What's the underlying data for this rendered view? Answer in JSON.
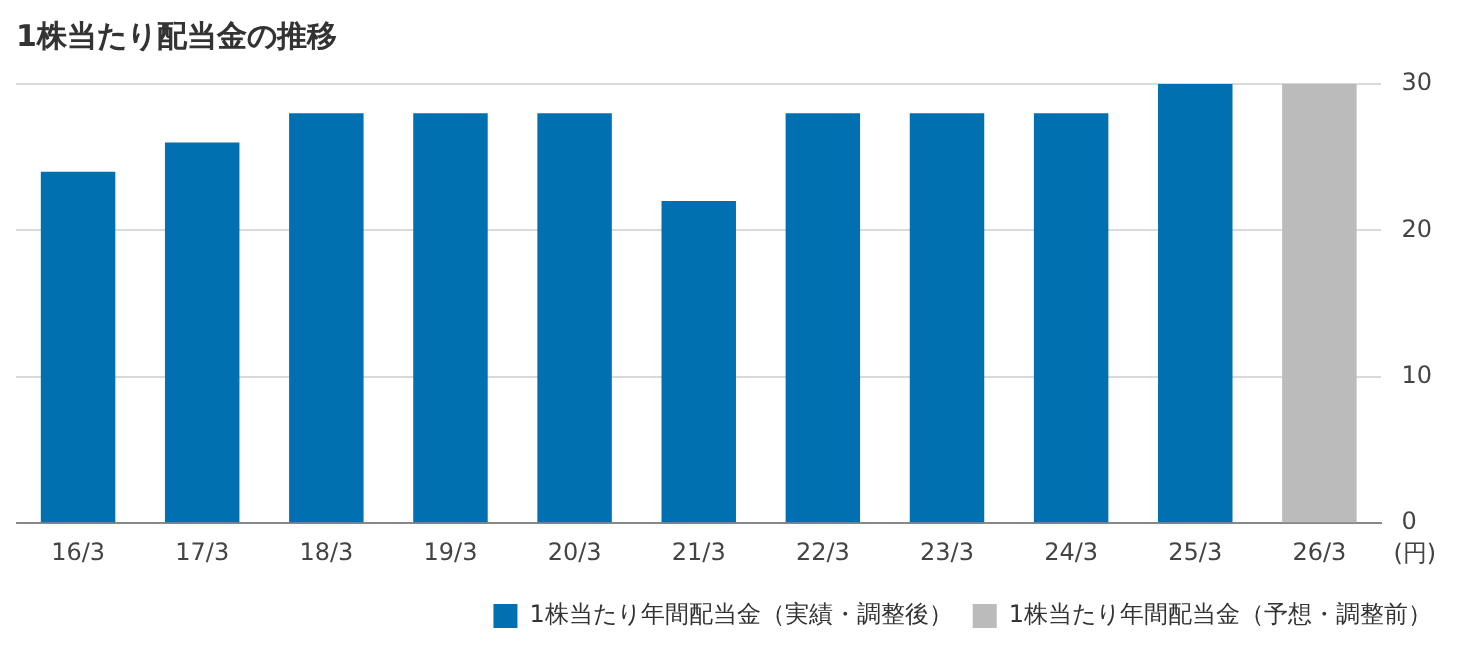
{
  "chart_data": {
    "type": "bar",
    "title": "1株当たり配当金の推移",
    "ylabel": "(円)",
    "categories": [
      "16/3",
      "17/3",
      "18/3",
      "19/3",
      "20/3",
      "21/3",
      "22/3",
      "23/3",
      "24/3",
      "25/3",
      "26/3"
    ],
    "series": [
      {
        "name": "1株当たり年間配当金（実績・調整後）",
        "color": "#0070b0",
        "values": [
          24,
          26,
          28,
          28,
          28,
          22,
          28,
          28,
          28,
          30,
          null
        ]
      },
      {
        "name": "1株当たり年間配当金（予想・調整前）",
        "color": "#bbbbbb",
        "values": [
          null,
          null,
          null,
          null,
          null,
          null,
          null,
          null,
          null,
          null,
          30
        ]
      }
    ],
    "stacked": true,
    "ylim": [
      0,
      30
    ],
    "yticks": [
      0,
      10,
      20,
      30
    ],
    "grid": "y",
    "legend": "bottom right"
  }
}
